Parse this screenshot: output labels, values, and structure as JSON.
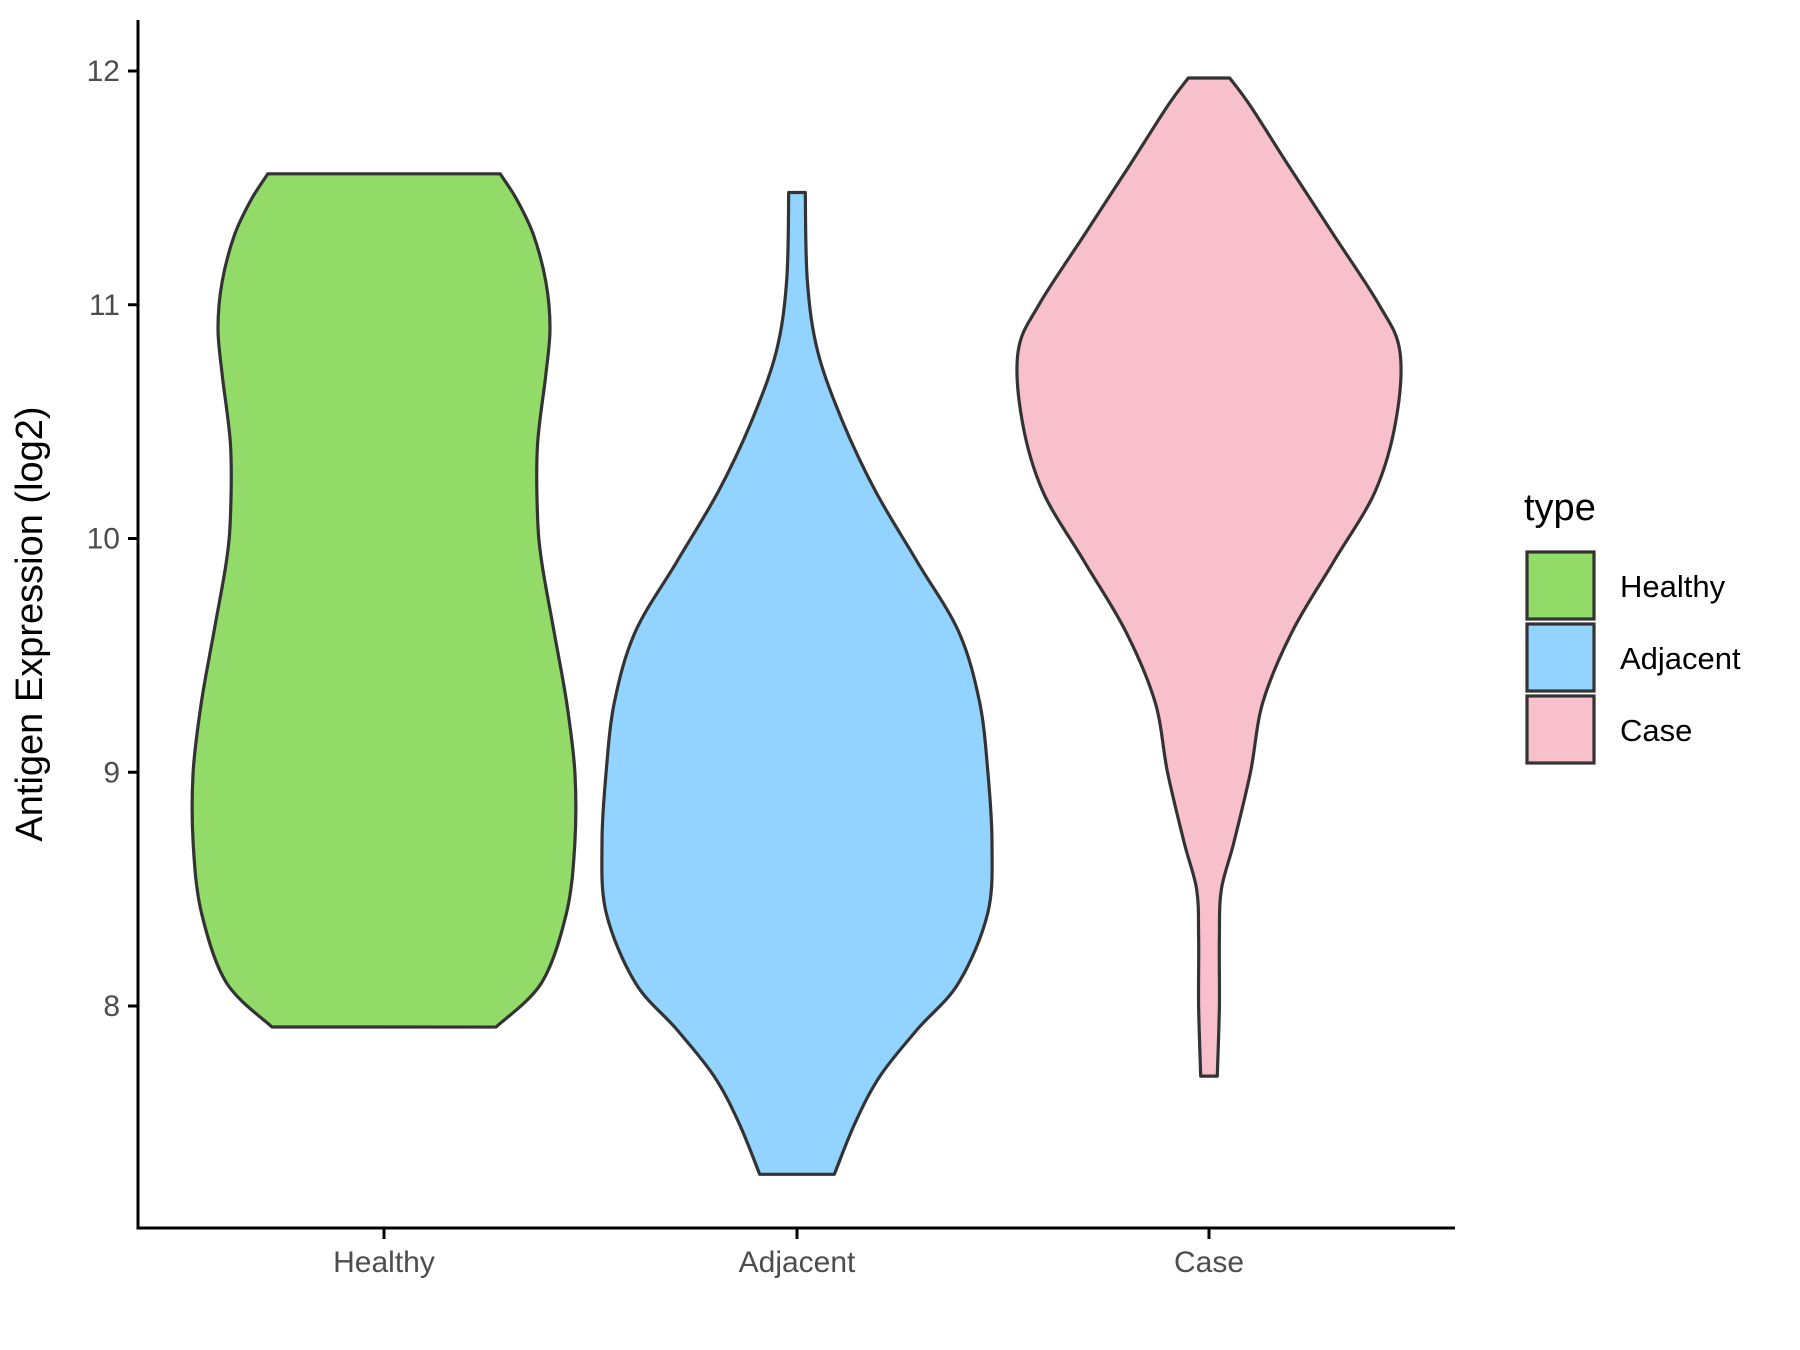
{
  "chart_data": {
    "type": "violin",
    "ylabel": "Antigen Expression (log2)",
    "xlabel": "",
    "ylim": [
      7.05,
      12.2
    ],
    "yticks": [
      8,
      9,
      10,
      11,
      12
    ],
    "ytick_labels": [
      "8",
      "9",
      "10",
      "11",
      "12"
    ],
    "categories": [
      "Healthy",
      "Adjacent",
      "Case"
    ],
    "legend": {
      "title": "type",
      "position": "right",
      "entries": [
        "Healthy",
        "Adjacent",
        "Case"
      ]
    },
    "grid": false,
    "series": [
      {
        "name": "Healthy",
        "color": "#93DB69",
        "min": 7.91,
        "max": 11.56,
        "density_profile": [
          [
            7.91,
            0.27
          ],
          [
            8.1,
            0.38
          ],
          [
            8.4,
            0.44
          ],
          [
            8.7,
            0.46
          ],
          [
            9.0,
            0.46
          ],
          [
            9.3,
            0.44
          ],
          [
            9.6,
            0.41
          ],
          [
            9.9,
            0.38
          ],
          [
            10.1,
            0.37
          ],
          [
            10.4,
            0.37
          ],
          [
            10.7,
            0.39
          ],
          [
            10.9,
            0.4
          ],
          [
            11.1,
            0.39
          ],
          [
            11.3,
            0.36
          ],
          [
            11.45,
            0.32
          ],
          [
            11.56,
            0.28
          ]
        ]
      },
      {
        "name": "Adjacent",
        "color": "#93D3FF",
        "min": 7.28,
        "max": 11.48,
        "density_profile": [
          [
            7.28,
            0.09
          ],
          [
            7.5,
            0.14
          ],
          [
            7.7,
            0.2
          ],
          [
            7.9,
            0.29
          ],
          [
            8.1,
            0.39
          ],
          [
            8.4,
            0.46
          ],
          [
            8.7,
            0.47
          ],
          [
            9.0,
            0.46
          ],
          [
            9.3,
            0.44
          ],
          [
            9.6,
            0.39
          ],
          [
            9.9,
            0.29
          ],
          [
            10.2,
            0.19
          ],
          [
            10.5,
            0.11
          ],
          [
            10.8,
            0.05
          ],
          [
            11.1,
            0.025
          ],
          [
            11.48,
            0.02
          ]
        ]
      },
      {
        "name": "Case",
        "color": "#F7C0CB",
        "min": 7.7,
        "max": 11.97,
        "density_profile": [
          [
            7.7,
            0.02
          ],
          [
            8.0,
            0.025
          ],
          [
            8.3,
            0.025
          ],
          [
            8.5,
            0.03
          ],
          [
            8.7,
            0.06
          ],
          [
            9.0,
            0.1
          ],
          [
            9.3,
            0.13
          ],
          [
            9.6,
            0.2
          ],
          [
            9.9,
            0.3
          ],
          [
            10.2,
            0.4
          ],
          [
            10.5,
            0.45
          ],
          [
            10.8,
            0.46
          ],
          [
            11.0,
            0.41
          ],
          [
            11.3,
            0.3
          ],
          [
            11.6,
            0.19
          ],
          [
            11.85,
            0.1
          ],
          [
            11.97,
            0.05
          ]
        ]
      }
    ]
  }
}
